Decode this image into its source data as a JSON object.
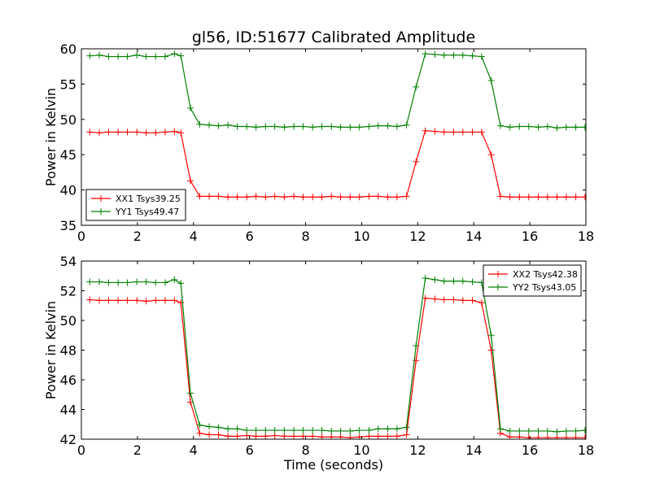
{
  "figure": {
    "title": "gl56, ID:51677 Calibrated Amplitude"
  },
  "chart_data": [
    {
      "type": "line",
      "title": "gl56, ID:51677 Calibrated Amplitude",
      "xlabel": "",
      "ylabel": "Power in Kelvin",
      "xlim": [
        0,
        18
      ],
      "ylim": [
        35,
        60
      ],
      "xticks": [
        0,
        2,
        4,
        6,
        8,
        10,
        12,
        14,
        16,
        18
      ],
      "yticks": [
        35,
        40,
        45,
        50,
        55,
        60
      ],
      "grid": false,
      "legend_position": "lower-left",
      "x": [
        0.3,
        0.64,
        0.97,
        1.31,
        1.64,
        1.98,
        2.31,
        2.65,
        2.99,
        3.32,
        3.55,
        3.89,
        4.22,
        4.56,
        4.89,
        5.23,
        5.56,
        5.9,
        6.23,
        6.57,
        6.9,
        7.24,
        7.58,
        7.91,
        8.25,
        8.58,
        8.92,
        9.25,
        9.59,
        9.92,
        10.26,
        10.59,
        10.93,
        11.26,
        11.6,
        11.94,
        12.27,
        12.61,
        12.94,
        13.28,
        13.61,
        13.95,
        14.28,
        14.62,
        14.95,
        15.29,
        15.63,
        15.96,
        16.3,
        16.63,
        16.97,
        17.3,
        17.64,
        17.97
      ],
      "series": [
        {
          "name": "XX1 Tsys39.25",
          "color": "#ff0000",
          "marker": "plus",
          "values": [
            48.2,
            48.1,
            48.2,
            48.2,
            48.2,
            48.2,
            48.1,
            48.1,
            48.2,
            48.3,
            48.1,
            41.3,
            39.1,
            39.1,
            39.1,
            39.0,
            39.0,
            39.0,
            39.1,
            39.0,
            39.1,
            39.0,
            39.1,
            39.0,
            39.0,
            39.0,
            39.1,
            39.0,
            39.0,
            39.0,
            39.1,
            39.1,
            39.0,
            39.0,
            39.1,
            44.0,
            48.4,
            48.3,
            48.2,
            48.2,
            48.2,
            48.2,
            48.2,
            45.0,
            39.1,
            39.0,
            39.0,
            39.0,
            39.0,
            39.0,
            39.0,
            39.0,
            39.0,
            39.0
          ]
        },
        {
          "name": "YY1 Tsys49.47",
          "color": "#008000",
          "marker": "plus",
          "values": [
            59.0,
            59.1,
            58.9,
            58.9,
            58.9,
            59.1,
            58.9,
            58.9,
            58.9,
            59.3,
            59.0,
            51.6,
            49.3,
            49.2,
            49.1,
            49.2,
            49.0,
            49.0,
            48.9,
            49.0,
            49.0,
            48.9,
            49.0,
            49.0,
            48.9,
            49.0,
            49.0,
            48.9,
            48.9,
            48.9,
            49.0,
            49.1,
            49.1,
            49.0,
            49.2,
            54.6,
            59.3,
            59.2,
            59.1,
            59.1,
            59.1,
            59.0,
            58.9,
            55.5,
            49.1,
            48.9,
            49.0,
            49.0,
            48.9,
            49.0,
            48.8,
            48.9,
            48.9,
            48.9
          ]
        }
      ]
    },
    {
      "type": "line",
      "title": "",
      "xlabel": "Time (seconds)",
      "ylabel": "Power in Kelvin",
      "xlim": [
        0,
        18
      ],
      "ylim": [
        42,
        54
      ],
      "xticks": [
        0,
        2,
        4,
        6,
        8,
        10,
        12,
        14,
        16,
        18
      ],
      "yticks": [
        42,
        44,
        46,
        48,
        50,
        52,
        54
      ],
      "grid": false,
      "legend_position": "upper-right",
      "x": [
        0.3,
        0.64,
        0.97,
        1.31,
        1.64,
        1.98,
        2.31,
        2.65,
        2.99,
        3.32,
        3.55,
        3.89,
        4.22,
        4.56,
        4.89,
        5.23,
        5.56,
        5.9,
        6.23,
        6.57,
        6.9,
        7.24,
        7.58,
        7.91,
        8.25,
        8.58,
        8.92,
        9.25,
        9.59,
        9.92,
        10.26,
        10.59,
        10.93,
        11.26,
        11.6,
        11.94,
        12.27,
        12.61,
        12.94,
        13.28,
        13.61,
        13.95,
        14.28,
        14.62,
        14.95,
        15.29,
        15.63,
        15.96,
        16.3,
        16.63,
        16.97,
        17.3,
        17.64,
        17.97
      ],
      "series": [
        {
          "name": "XX2 Tsys42.38",
          "color": "#ff0000",
          "marker": "plus",
          "values": [
            51.4,
            51.35,
            51.35,
            51.35,
            51.35,
            51.35,
            51.3,
            51.35,
            51.35,
            51.35,
            51.2,
            44.5,
            42.4,
            42.3,
            42.3,
            42.2,
            42.2,
            42.25,
            42.2,
            42.2,
            42.25,
            42.2,
            42.2,
            42.2,
            42.2,
            42.15,
            42.15,
            42.15,
            42.1,
            42.15,
            42.2,
            42.2,
            42.2,
            42.2,
            42.3,
            47.3,
            51.5,
            51.45,
            51.4,
            51.4,
            51.35,
            51.35,
            51.2,
            48.0,
            42.4,
            42.15,
            42.15,
            42.1,
            42.1,
            42.1,
            42.1,
            42.1,
            42.1,
            42.1
          ]
        },
        {
          "name": "YY2 Tsys43.05",
          "color": "#008000",
          "marker": "plus",
          "values": [
            52.6,
            52.6,
            52.55,
            52.55,
            52.55,
            52.6,
            52.6,
            52.55,
            52.55,
            52.75,
            52.5,
            45.1,
            42.95,
            42.85,
            42.8,
            42.7,
            42.7,
            42.6,
            42.6,
            42.6,
            42.6,
            42.6,
            42.6,
            42.6,
            42.6,
            42.6,
            42.55,
            42.55,
            42.55,
            42.6,
            42.6,
            42.7,
            42.7,
            42.7,
            42.8,
            48.3,
            52.85,
            52.75,
            52.65,
            52.65,
            52.65,
            52.6,
            52.55,
            49.0,
            42.7,
            42.55,
            42.55,
            42.55,
            42.55,
            42.55,
            42.5,
            42.55,
            42.55,
            42.6
          ]
        }
      ]
    }
  ]
}
